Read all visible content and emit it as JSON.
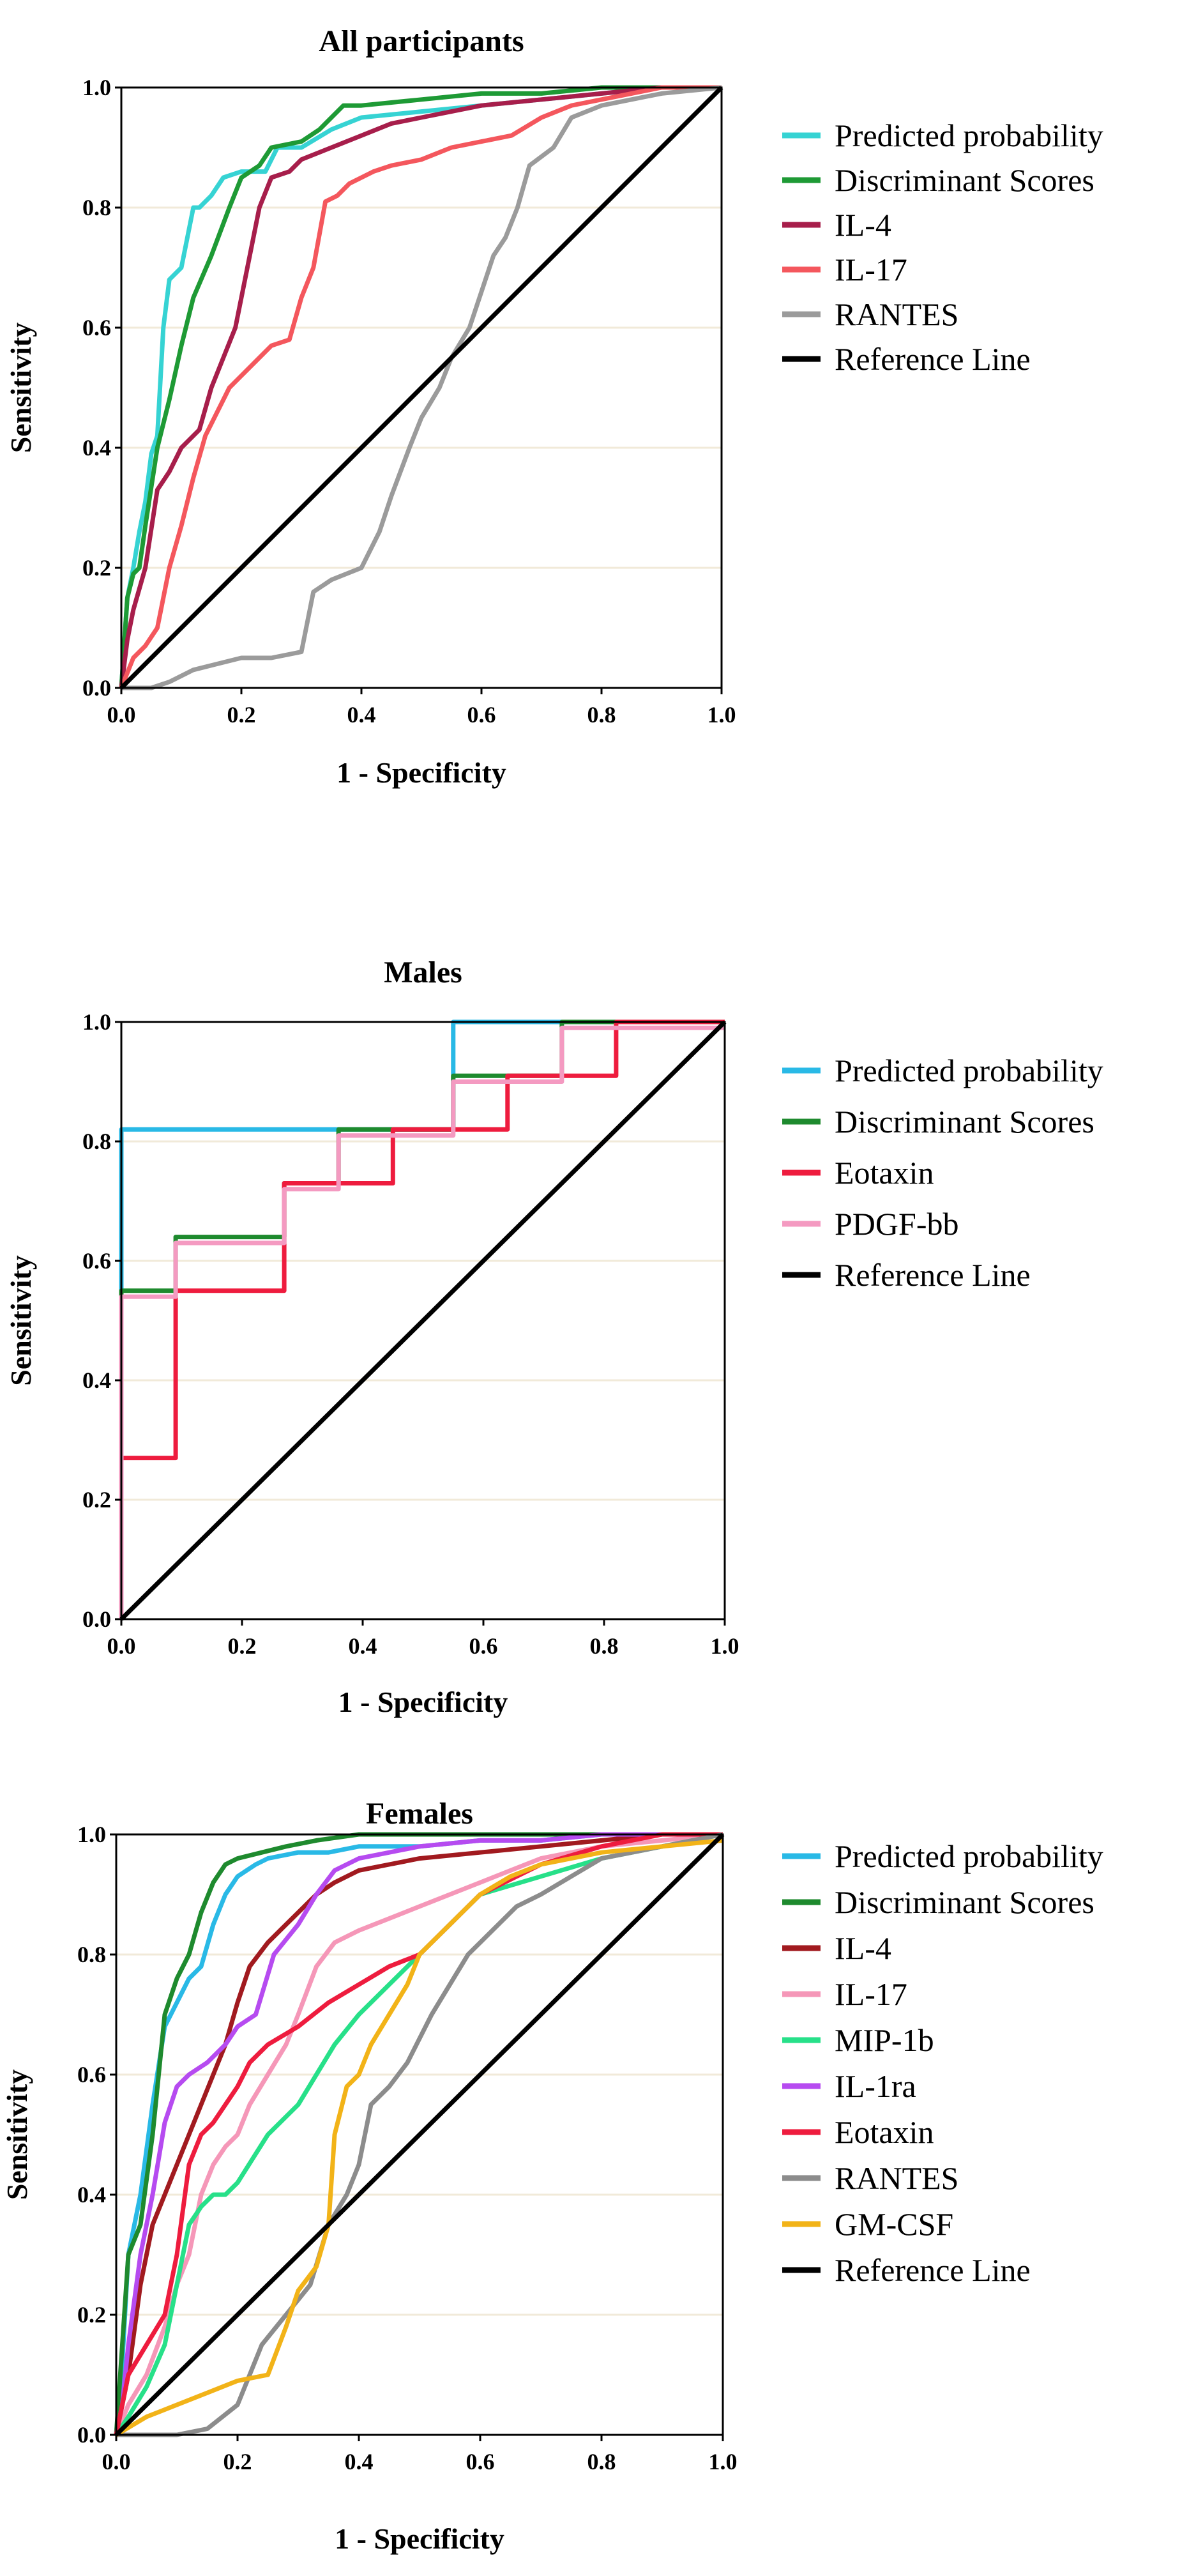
{
  "chart_data": [
    {
      "type": "line",
      "title": "All participants",
      "xlabel": "1 - Specificity",
      "ylabel": "Sensitivity",
      "xlim": [
        0,
        1
      ],
      "ylim": [
        0,
        1
      ],
      "xticks": [
        "0.0",
        "0.2",
        "0.4",
        "0.6",
        "0.8",
        "1.0"
      ],
      "yticks": [
        "0.0",
        "0.2",
        "0.4",
        "0.6",
        "0.8",
        "1.0"
      ],
      "legend_position": "right",
      "series": [
        {
          "name": "Predicted probability",
          "color": "#36d3d3",
          "x": [
            0,
            0.01,
            0.02,
            0.03,
            0.04,
            0.05,
            0.06,
            0.07,
            0.08,
            0.1,
            0.12,
            0.13,
            0.15,
            0.17,
            0.2,
            0.24,
            0.26,
            0.3,
            0.35,
            0.4,
            0.5,
            0.6,
            0.7,
            0.8,
            0.9,
            1.0
          ],
          "y": [
            0,
            0.15,
            0.2,
            0.26,
            0.31,
            0.39,
            0.42,
            0.6,
            0.68,
            0.7,
            0.8,
            0.8,
            0.82,
            0.85,
            0.86,
            0.86,
            0.9,
            0.9,
            0.93,
            0.95,
            0.96,
            0.97,
            0.98,
            0.99,
            1.0,
            1.0
          ]
        },
        {
          "name": "Discriminant Scores",
          "color": "#1e9a35",
          "x": [
            0,
            0.01,
            0.02,
            0.03,
            0.04,
            0.06,
            0.08,
            0.1,
            0.12,
            0.15,
            0.18,
            0.2,
            0.23,
            0.25,
            0.3,
            0.33,
            0.37,
            0.4,
            0.5,
            0.6,
            0.7,
            0.8,
            0.9,
            1.0
          ],
          "y": [
            0,
            0.15,
            0.19,
            0.2,
            0.27,
            0.4,
            0.48,
            0.57,
            0.65,
            0.72,
            0.8,
            0.85,
            0.87,
            0.9,
            0.91,
            0.93,
            0.97,
            0.97,
            0.98,
            0.99,
            0.99,
            1.0,
            1.0,
            1.0
          ]
        },
        {
          "name": "IL-4",
          "color": "#a71e4b",
          "x": [
            0,
            0.01,
            0.02,
            0.04,
            0.06,
            0.08,
            0.1,
            0.13,
            0.15,
            0.17,
            0.19,
            0.21,
            0.23,
            0.25,
            0.28,
            0.3,
            0.35,
            0.4,
            0.45,
            0.5,
            0.55,
            0.6,
            0.7,
            0.8,
            0.9,
            1.0
          ],
          "y": [
            0,
            0.08,
            0.13,
            0.2,
            0.33,
            0.36,
            0.4,
            0.43,
            0.5,
            0.55,
            0.6,
            0.7,
            0.8,
            0.85,
            0.86,
            0.88,
            0.9,
            0.92,
            0.94,
            0.95,
            0.96,
            0.97,
            0.98,
            0.99,
            1.0,
            1.0
          ]
        },
        {
          "name": "IL-17",
          "color": "#f4575d",
          "x": [
            0,
            0.02,
            0.04,
            0.06,
            0.08,
            0.1,
            0.12,
            0.14,
            0.16,
            0.18,
            0.2,
            0.23,
            0.25,
            0.28,
            0.3,
            0.32,
            0.34,
            0.36,
            0.38,
            0.42,
            0.45,
            0.5,
            0.55,
            0.6,
            0.65,
            0.7,
            0.75,
            0.8,
            0.85,
            0.9,
            1.0
          ],
          "y": [
            0,
            0.05,
            0.07,
            0.1,
            0.2,
            0.27,
            0.35,
            0.42,
            0.46,
            0.5,
            0.52,
            0.55,
            0.57,
            0.58,
            0.65,
            0.7,
            0.81,
            0.82,
            0.84,
            0.86,
            0.87,
            0.88,
            0.9,
            0.91,
            0.92,
            0.95,
            0.97,
            0.98,
            0.99,
            1.0,
            1.0
          ]
        },
        {
          "name": "RANTES",
          "color": "#9b9b9b",
          "x": [
            0,
            0.05,
            0.08,
            0.12,
            0.16,
            0.2,
            0.25,
            0.3,
            0.32,
            0.35,
            0.4,
            0.43,
            0.45,
            0.48,
            0.5,
            0.53,
            0.55,
            0.58,
            0.6,
            0.62,
            0.64,
            0.66,
            0.68,
            0.72,
            0.75,
            0.8,
            0.85,
            0.9,
            1.0
          ],
          "y": [
            0,
            0.0,
            0.01,
            0.03,
            0.04,
            0.05,
            0.05,
            0.06,
            0.16,
            0.18,
            0.2,
            0.26,
            0.32,
            0.4,
            0.45,
            0.5,
            0.55,
            0.6,
            0.66,
            0.72,
            0.75,
            0.8,
            0.87,
            0.9,
            0.95,
            0.97,
            0.98,
            0.99,
            1.0
          ]
        },
        {
          "name": "Reference Line",
          "color": "#000000",
          "x": [
            0,
            1
          ],
          "y": [
            0,
            1
          ]
        }
      ]
    },
    {
      "type": "line",
      "title": "Males",
      "xlabel": "1 - Specificity",
      "ylabel": "Sensitivity",
      "xlim": [
        0,
        1
      ],
      "ylim": [
        0,
        1
      ],
      "xticks": [
        "0.0",
        "0.2",
        "0.4",
        "0.6",
        "0.8",
        "1.0"
      ],
      "yticks": [
        "0.0",
        "0.2",
        "0.4",
        "0.6",
        "0.8",
        "1.0"
      ],
      "legend_position": "right",
      "series": [
        {
          "name": "Predicted probability",
          "color": "#29b9e6",
          "x": [
            0,
            0,
            0.55,
            0.55,
            1.0
          ],
          "y": [
            0,
            0.82,
            0.82,
            1.0,
            1.0
          ]
        },
        {
          "name": "Discriminant Scores",
          "color": "#1e8a2e",
          "x": [
            0,
            0,
            0.09,
            0.09,
            0.27,
            0.27,
            0.36,
            0.36,
            0.55,
            0.55,
            0.73,
            0.73,
            1.0
          ],
          "y": [
            0,
            0.55,
            0.55,
            0.64,
            0.64,
            0.73,
            0.73,
            0.82,
            0.82,
            0.91,
            0.91,
            1.0,
            1.0
          ]
        },
        {
          "name": "Eotaxin",
          "color": "#ee1c3e",
          "x": [
            0,
            0,
            0.09,
            0.09,
            0.27,
            0.27,
            0.36,
            0.36,
            0.45,
            0.45,
            0.64,
            0.64,
            0.82,
            0.82,
            1.0
          ],
          "y": [
            0,
            0.27,
            0.27,
            0.55,
            0.55,
            0.73,
            0.73,
            0.73,
            0.73,
            0.82,
            0.82,
            0.91,
            0.91,
            1.0,
            1.0
          ]
        },
        {
          "name": "PDGF-bb",
          "color": "#f49ac1",
          "x": [
            0,
            0,
            0.09,
            0.09,
            0.27,
            0.27,
            0.36,
            0.36,
            0.55,
            0.55,
            0.73,
            0.73,
            1.0
          ],
          "y": [
            0,
            0.54,
            0.54,
            0.63,
            0.63,
            0.72,
            0.72,
            0.81,
            0.81,
            0.9,
            0.9,
            0.99,
            0.99
          ]
        },
        {
          "name": "Reference Line",
          "color": "#000000",
          "x": [
            0,
            1
          ],
          "y": [
            0,
            1
          ]
        }
      ]
    },
    {
      "type": "line",
      "title": "Females",
      "xlabel": "1 - Specificity",
      "ylabel": "Sensitivity",
      "xlim": [
        0,
        1
      ],
      "ylim": [
        0,
        1
      ],
      "xticks": [
        "0.0",
        "0.2",
        "0.4",
        "0.6",
        "0.8",
        "1.0"
      ],
      "yticks": [
        "0.0",
        "0.2",
        "0.4",
        "0.6",
        "0.8",
        "1.0"
      ],
      "legend_position": "right",
      "series": [
        {
          "name": "Predicted probability",
          "color": "#29b9e6",
          "x": [
            0,
            0.01,
            0.02,
            0.04,
            0.06,
            0.08,
            0.1,
            0.12,
            0.14,
            0.16,
            0.18,
            0.2,
            0.23,
            0.25,
            0.3,
            0.35,
            0.4,
            0.5,
            0.6,
            0.7,
            0.8,
            0.9,
            1.0
          ],
          "y": [
            0,
            0.12,
            0.3,
            0.4,
            0.55,
            0.68,
            0.72,
            0.76,
            0.78,
            0.85,
            0.9,
            0.93,
            0.95,
            0.96,
            0.97,
            0.97,
            0.98,
            0.98,
            0.99,
            0.99,
            1.0,
            1.0,
            1.0
          ]
        },
        {
          "name": "Discriminant Scores",
          "color": "#1e8a2e",
          "x": [
            0,
            0.01,
            0.02,
            0.04,
            0.06,
            0.08,
            0.1,
            0.12,
            0.14,
            0.16,
            0.18,
            0.2,
            0.24,
            0.28,
            0.33,
            0.4,
            0.5,
            0.6,
            0.7,
            0.8,
            0.9,
            1.0
          ],
          "y": [
            0,
            0.15,
            0.3,
            0.35,
            0.5,
            0.7,
            0.76,
            0.8,
            0.87,
            0.92,
            0.95,
            0.96,
            0.97,
            0.98,
            0.99,
            1.0,
            1.0,
            1.0,
            1.0,
            1.0,
            1.0,
            1.0
          ]
        },
        {
          "name": "IL-4",
          "color": "#a11a1f",
          "x": [
            0,
            0.02,
            0.04,
            0.06,
            0.08,
            0.1,
            0.12,
            0.14,
            0.16,
            0.18,
            0.2,
            0.22,
            0.25,
            0.28,
            0.3,
            0.33,
            0.36,
            0.4,
            0.45,
            0.5,
            0.6,
            0.7,
            0.8,
            0.9,
            1.0
          ],
          "y": [
            0,
            0.1,
            0.25,
            0.35,
            0.4,
            0.45,
            0.5,
            0.55,
            0.6,
            0.65,
            0.72,
            0.78,
            0.82,
            0.85,
            0.87,
            0.9,
            0.92,
            0.94,
            0.95,
            0.96,
            0.97,
            0.98,
            0.99,
            1.0,
            1.0
          ]
        },
        {
          "name": "IL-17",
          "color": "#f597b8",
          "x": [
            0,
            0.02,
            0.05,
            0.08,
            0.1,
            0.12,
            0.14,
            0.16,
            0.18,
            0.2,
            0.22,
            0.25,
            0.28,
            0.3,
            0.33,
            0.36,
            0.4,
            0.45,
            0.5,
            0.55,
            0.6,
            0.65,
            0.7,
            0.8,
            0.9,
            1.0
          ],
          "y": [
            0,
            0.05,
            0.1,
            0.18,
            0.25,
            0.3,
            0.4,
            0.45,
            0.48,
            0.5,
            0.55,
            0.6,
            0.65,
            0.7,
            0.78,
            0.82,
            0.84,
            0.86,
            0.88,
            0.9,
            0.92,
            0.94,
            0.96,
            0.98,
            0.99,
            1.0
          ]
        },
        {
          "name": "MIP-1b",
          "color": "#27e089",
          "x": [
            0,
            0.02,
            0.05,
            0.08,
            0.1,
            0.12,
            0.14,
            0.16,
            0.18,
            0.2,
            0.25,
            0.3,
            0.33,
            0.36,
            0.4,
            0.45,
            0.5,
            0.55,
            0.6,
            0.7,
            0.8,
            0.9,
            1.0
          ],
          "y": [
            0,
            0.03,
            0.08,
            0.15,
            0.25,
            0.35,
            0.38,
            0.4,
            0.4,
            0.42,
            0.5,
            0.55,
            0.6,
            0.65,
            0.7,
            0.75,
            0.8,
            0.85,
            0.9,
            0.93,
            0.96,
            0.98,
            1.0
          ]
        },
        {
          "name": "IL-1ra",
          "color": "#b64bf0",
          "x": [
            0,
            0.01,
            0.02,
            0.04,
            0.06,
            0.08,
            0.1,
            0.12,
            0.15,
            0.18,
            0.2,
            0.23,
            0.26,
            0.3,
            0.33,
            0.36,
            0.4,
            0.45,
            0.5,
            0.6,
            0.7,
            0.8,
            0.9,
            1.0
          ],
          "y": [
            0,
            0.05,
            0.15,
            0.3,
            0.4,
            0.52,
            0.58,
            0.6,
            0.62,
            0.65,
            0.68,
            0.7,
            0.8,
            0.85,
            0.9,
            0.94,
            0.96,
            0.97,
            0.98,
            0.99,
            0.99,
            1.0,
            1.0,
            1.0
          ]
        },
        {
          "name": "Eotaxin",
          "color": "#ee1c3e",
          "x": [
            0,
            0.02,
            0.05,
            0.08,
            0.1,
            0.12,
            0.14,
            0.16,
            0.18,
            0.2,
            0.22,
            0.25,
            0.3,
            0.35,
            0.4,
            0.45,
            0.5,
            0.55,
            0.6,
            0.7,
            0.8,
            0.9,
            1.0
          ],
          "y": [
            0,
            0.1,
            0.15,
            0.2,
            0.3,
            0.45,
            0.5,
            0.52,
            0.55,
            0.58,
            0.62,
            0.65,
            0.68,
            0.72,
            0.75,
            0.78,
            0.8,
            0.85,
            0.9,
            0.95,
            0.98,
            1.0,
            1.0
          ]
        },
        {
          "name": "RANTES",
          "color": "#8c8c8c",
          "x": [
            0,
            0.1,
            0.15,
            0.2,
            0.24,
            0.28,
            0.32,
            0.35,
            0.38,
            0.4,
            0.42,
            0.45,
            0.48,
            0.5,
            0.52,
            0.55,
            0.58,
            0.6,
            0.63,
            0.66,
            0.7,
            0.75,
            0.8,
            0.9,
            1.0
          ],
          "y": [
            0,
            0.0,
            0.01,
            0.05,
            0.15,
            0.2,
            0.25,
            0.35,
            0.4,
            0.45,
            0.55,
            0.58,
            0.62,
            0.66,
            0.7,
            0.75,
            0.8,
            0.82,
            0.85,
            0.88,
            0.9,
            0.93,
            0.96,
            0.98,
            1.0
          ]
        },
        {
          "name": "GM-CSF",
          "color": "#f2b318",
          "x": [
            0,
            0.05,
            0.1,
            0.15,
            0.2,
            0.25,
            0.28,
            0.3,
            0.33,
            0.35,
            0.36,
            0.38,
            0.4,
            0.42,
            0.45,
            0.48,
            0.5,
            0.55,
            0.6,
            0.65,
            0.7,
            0.75,
            0.8,
            0.9,
            1.0
          ],
          "y": [
            0,
            0.03,
            0.05,
            0.07,
            0.09,
            0.1,
            0.18,
            0.24,
            0.28,
            0.35,
            0.5,
            0.58,
            0.6,
            0.65,
            0.7,
            0.75,
            0.8,
            0.85,
            0.9,
            0.93,
            0.95,
            0.96,
            0.97,
            0.98,
            0.99
          ]
        },
        {
          "name": "Reference Line",
          "color": "#000000",
          "x": [
            0,
            1
          ],
          "y": [
            0,
            1
          ]
        }
      ]
    }
  ]
}
